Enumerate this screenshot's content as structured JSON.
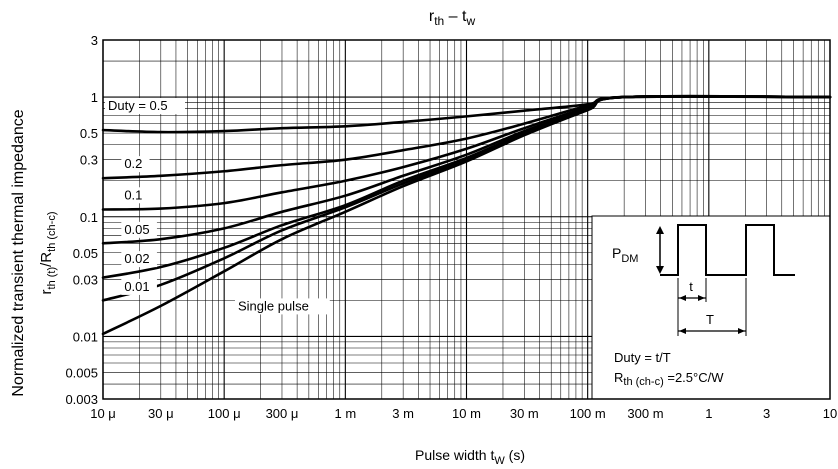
{
  "chart_data": {
    "type": "line",
    "title": "r",
    "title_sub": "th",
    "title_dash": " – t",
    "title_sub2": "w",
    "ylabel_line1": "Normalized transient thermal impedance",
    "ylabel_line2_main1": "r",
    "ylabel_line2_sub1": "th (t)",
    "ylabel_line2_main2": "/R",
    "ylabel_line2_sub2": "th (ch-c)",
    "xlabel_main": "Pulse width   t",
    "xlabel_sub": "W",
    "xlabel_unit": "   (s)",
    "x_scale": "log",
    "y_scale": "log",
    "xlim": [
      1e-05,
      10
    ],
    "ylim": [
      0.003,
      3
    ],
    "grid": true,
    "x_ticks": [
      {
        "value": 1e-05,
        "label": "10 μ"
      },
      {
        "value": 3e-05,
        "label": "30 μ"
      },
      {
        "value": 0.0001,
        "label": "100 μ"
      },
      {
        "value": 0.0003,
        "label": "300 μ"
      },
      {
        "value": 0.001,
        "label": "1 m"
      },
      {
        "value": 0.003,
        "label": "3 m"
      },
      {
        "value": 0.01,
        "label": "10 m"
      },
      {
        "value": 0.03,
        "label": "30 m"
      },
      {
        "value": 0.1,
        "label": "100 m"
      },
      {
        "value": 0.3,
        "label": "300 m"
      },
      {
        "value": 1,
        "label": "1"
      },
      {
        "value": 3,
        "label": "3"
      },
      {
        "value": 10,
        "label": "10"
      }
    ],
    "y_ticks": [
      {
        "value": 3,
        "label": "3"
      },
      {
        "value": 1,
        "label": "1"
      },
      {
        "value": 0.5,
        "label": "0.5"
      },
      {
        "value": 0.3,
        "label": "0.3"
      },
      {
        "value": 0.1,
        "label": "0.1"
      },
      {
        "value": 0.05,
        "label": "0.05"
      },
      {
        "value": 0.03,
        "label": "0.03"
      },
      {
        "value": 0.01,
        "label": "0.01"
      },
      {
        "value": 0.005,
        "label": "0.005"
      },
      {
        "value": 0.003,
        "label": "0.003"
      }
    ],
    "series": [
      {
        "name": "Duty = 0.5",
        "x": [
          1e-05,
          3e-05,
          0.0001,
          0.0003,
          0.001,
          0.003,
          0.01,
          0.03,
          0.1,
          0.2,
          10
        ],
        "y": [
          0.53,
          0.51,
          0.52,
          0.55,
          0.57,
          0.62,
          0.69,
          0.77,
          0.87,
          1.0,
          1.0
        ]
      },
      {
        "name": "0.2",
        "x": [
          1e-05,
          3e-05,
          0.0001,
          0.0003,
          0.001,
          0.003,
          0.01,
          0.03,
          0.1,
          0.2,
          10
        ],
        "y": [
          0.21,
          0.22,
          0.24,
          0.27,
          0.3,
          0.36,
          0.45,
          0.6,
          0.85,
          1.0,
          1.0
        ]
      },
      {
        "name": "0.1",
        "x": [
          1e-05,
          3e-05,
          0.0001,
          0.0003,
          0.001,
          0.003,
          0.01,
          0.03,
          0.1,
          0.2,
          10
        ],
        "y": [
          0.115,
          0.117,
          0.13,
          0.16,
          0.2,
          0.26,
          0.37,
          0.55,
          0.82,
          1.0,
          1.0
        ]
      },
      {
        "name": "0.05",
        "x": [
          1e-05,
          3e-05,
          0.0001,
          0.0003,
          0.001,
          0.003,
          0.01,
          0.03,
          0.1,
          0.2,
          10
        ],
        "y": [
          0.06,
          0.065,
          0.08,
          0.11,
          0.15,
          0.22,
          0.33,
          0.52,
          0.8,
          1.0,
          1.0
        ]
      },
      {
        "name": "0.02",
        "x": [
          1e-05,
          3e-05,
          0.0001,
          0.0003,
          0.001,
          0.003,
          0.01,
          0.03,
          0.1,
          0.2,
          10
        ],
        "y": [
          0.031,
          0.038,
          0.055,
          0.085,
          0.125,
          0.2,
          0.31,
          0.5,
          0.79,
          1.0,
          1.0
        ]
      },
      {
        "name": "0.01",
        "x": [
          1e-05,
          3e-05,
          0.0001,
          0.0003,
          0.001,
          0.003,
          0.01,
          0.03,
          0.1,
          0.2,
          10
        ],
        "y": [
          0.02,
          0.027,
          0.045,
          0.077,
          0.12,
          0.19,
          0.3,
          0.49,
          0.78,
          1.0,
          1.0
        ]
      },
      {
        "name": "Single pulse",
        "x": [
          1e-05,
          3e-05,
          0.0001,
          0.0003,
          0.001,
          0.003,
          0.01,
          0.03,
          0.1,
          0.2,
          10
        ],
        "y": [
          0.0105,
          0.018,
          0.035,
          0.065,
          0.11,
          0.18,
          0.29,
          0.48,
          0.78,
          1.0,
          1.0
        ]
      }
    ],
    "series_labels": [
      {
        "text": "Duty = 0.5",
        "x": 1.1e-05,
        "y": 0.78
      },
      {
        "text": "0.2",
        "x": 1.5e-05,
        "y": 0.255
      },
      {
        "text": "0.1",
        "x": 1.5e-05,
        "y": 0.14
      },
      {
        "text": "0.05",
        "x": 1.5e-05,
        "y": 0.072
      },
      {
        "text": "0.02",
        "x": 1.5e-05,
        "y": 0.041
      },
      {
        "text": "0.01",
        "x": 1.5e-05,
        "y": 0.024
      },
      {
        "text": "Single pulse",
        "x": 0.00013,
        "y": 0.0165
      }
    ],
    "inset": {
      "pdm_main": "P",
      "pdm_sub": "DM",
      "t_label": "t",
      "T_label": "T",
      "duty_formula": "Duty = t/T",
      "rth_main": "R",
      "rth_sub": "th (ch-c)",
      "rth_value": " =2.5°C/W"
    }
  }
}
